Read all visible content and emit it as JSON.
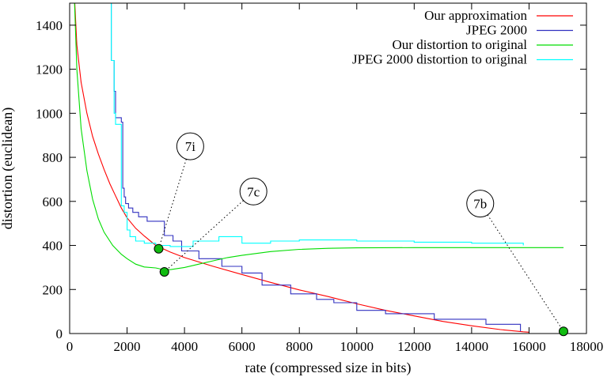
{
  "chart_data": {
    "type": "line",
    "title": "",
    "xlabel": "rate (compressed size in bits)",
    "ylabel": "distortion (euclidean)",
    "xlim": [
      0,
      18000
    ],
    "ylim": [
      0,
      1500
    ],
    "xticks": [
      0,
      2000,
      4000,
      6000,
      8000,
      10000,
      12000,
      14000,
      16000,
      18000
    ],
    "yticks": [
      0,
      200,
      400,
      600,
      800,
      1000,
      1200,
      1400
    ],
    "grid": false,
    "legend_position": "top-right",
    "series": [
      {
        "name": "Our approximation",
        "color": "#ff0000",
        "style": "line",
        "points": [
          [
            180,
            1500
          ],
          [
            250,
            1310
          ],
          [
            400,
            1140
          ],
          [
            600,
            1000
          ],
          [
            800,
            895
          ],
          [
            1000,
            815
          ],
          [
            1200,
            745
          ],
          [
            1400,
            680
          ],
          [
            1600,
            625
          ],
          [
            1800,
            570
          ],
          [
            2000,
            525
          ],
          [
            2300,
            478
          ],
          [
            2600,
            443
          ],
          [
            3000,
            400
          ],
          [
            3500,
            370
          ],
          [
            4000,
            345
          ],
          [
            5000,
            305
          ],
          [
            6000,
            268
          ],
          [
            7000,
            232
          ],
          [
            8000,
            198
          ],
          [
            9000,
            168
          ],
          [
            10000,
            135
          ],
          [
            11000,
            105
          ],
          [
            12000,
            80
          ],
          [
            13000,
            55
          ],
          [
            14000,
            35
          ],
          [
            15000,
            18
          ],
          [
            15800,
            8
          ],
          [
            16000,
            6
          ]
        ]
      },
      {
        "name": "JPEG 2000",
        "color": "#3030c0",
        "style": "step",
        "points": [
          [
            1450,
            1500
          ],
          [
            1450,
            1240
          ],
          [
            1550,
            1240
          ],
          [
            1550,
            1100
          ],
          [
            1600,
            1100
          ],
          [
            1600,
            980
          ],
          [
            1800,
            980
          ],
          [
            1800,
            960
          ],
          [
            1850,
            960
          ],
          [
            1850,
            660
          ],
          [
            1900,
            660
          ],
          [
            1900,
            620
          ],
          [
            1950,
            620
          ],
          [
            1950,
            590
          ],
          [
            2050,
            590
          ],
          [
            2050,
            570
          ],
          [
            2200,
            570
          ],
          [
            2200,
            550
          ],
          [
            2400,
            550
          ],
          [
            2400,
            530
          ],
          [
            2700,
            530
          ],
          [
            2700,
            510
          ],
          [
            3300,
            510
          ],
          [
            3300,
            445
          ],
          [
            3600,
            445
          ],
          [
            3600,
            420
          ],
          [
            3900,
            420
          ],
          [
            3900,
            375
          ],
          [
            4500,
            375
          ],
          [
            4500,
            340
          ],
          [
            5300,
            340
          ],
          [
            5300,
            305
          ],
          [
            6000,
            305
          ],
          [
            6000,
            275
          ],
          [
            6700,
            275
          ],
          [
            6700,
            220
          ],
          [
            7700,
            220
          ],
          [
            7700,
            180
          ],
          [
            8600,
            180
          ],
          [
            8600,
            155
          ],
          [
            9200,
            155
          ],
          [
            9200,
            140
          ],
          [
            10000,
            140
          ],
          [
            10000,
            105
          ],
          [
            11000,
            105
          ],
          [
            11000,
            90
          ],
          [
            12700,
            90
          ],
          [
            12700,
            65
          ],
          [
            14500,
            65
          ],
          [
            14500,
            42
          ],
          [
            15700,
            42
          ],
          [
            15700,
            10
          ]
        ]
      },
      {
        "name": "Our distortion to original",
        "color": "#00dd00",
        "style": "line",
        "points": [
          [
            170,
            1500
          ],
          [
            250,
            1200
          ],
          [
            400,
            930
          ],
          [
            600,
            740
          ],
          [
            800,
            610
          ],
          [
            1000,
            520
          ],
          [
            1200,
            460
          ],
          [
            1500,
            400
          ],
          [
            1800,
            360
          ],
          [
            2000,
            340
          ],
          [
            2300,
            315
          ],
          [
            2600,
            302
          ],
          [
            3000,
            298
          ],
          [
            3200,
            292
          ],
          [
            3500,
            290
          ],
          [
            4000,
            300
          ],
          [
            4500,
            315
          ],
          [
            5000,
            330
          ],
          [
            5500,
            345
          ],
          [
            6000,
            355
          ],
          [
            7000,
            372
          ],
          [
            8000,
            382
          ],
          [
            9000,
            387
          ],
          [
            10000,
            389
          ],
          [
            12000,
            390
          ],
          [
            14000,
            390
          ],
          [
            16000,
            390
          ],
          [
            17200,
            390
          ]
        ]
      },
      {
        "name": "JPEG 2000 distortion to original",
        "color": "#00ffff",
        "style": "step",
        "points": [
          [
            1450,
            1500
          ],
          [
            1450,
            1240
          ],
          [
            1550,
            1240
          ],
          [
            1550,
            1000
          ],
          [
            1600,
            1000
          ],
          [
            1600,
            950
          ],
          [
            1800,
            950
          ],
          [
            1800,
            580
          ],
          [
            1900,
            580
          ],
          [
            1900,
            550
          ],
          [
            2000,
            550
          ],
          [
            2000,
            470
          ],
          [
            2100,
            470
          ],
          [
            2100,
            440
          ],
          [
            2300,
            440
          ],
          [
            2300,
            420
          ],
          [
            2600,
            420
          ],
          [
            2600,
            410
          ],
          [
            3000,
            410
          ],
          [
            3000,
            400
          ],
          [
            3500,
            400
          ],
          [
            3500,
            395
          ],
          [
            4300,
            395
          ],
          [
            4300,
            420
          ],
          [
            5200,
            420
          ],
          [
            5200,
            440
          ],
          [
            6000,
            440
          ],
          [
            6000,
            410
          ],
          [
            7000,
            410
          ],
          [
            7000,
            420
          ],
          [
            8000,
            420
          ],
          [
            8000,
            425
          ],
          [
            10000,
            425
          ],
          [
            10000,
            420
          ],
          [
            12000,
            420
          ],
          [
            12000,
            415
          ],
          [
            14000,
            415
          ],
          [
            14000,
            410
          ],
          [
            15800,
            410
          ],
          [
            15800,
            400
          ]
        ]
      }
    ],
    "annotations": [
      {
        "label": "7i",
        "point": [
          3100,
          385
        ],
        "label_at": [
          4200,
          850
        ]
      },
      {
        "label": "7c",
        "point": [
          3300,
          280
        ],
        "label_at": [
          6400,
          645
        ]
      },
      {
        "label": "7b",
        "point": [
          17200,
          10
        ],
        "label_at": [
          14300,
          590
        ]
      }
    ]
  }
}
